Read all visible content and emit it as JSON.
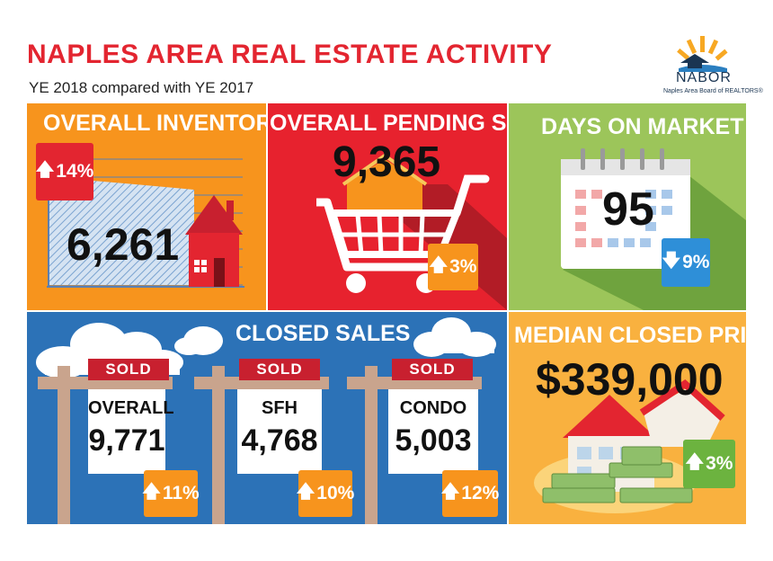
{
  "header": {
    "title": "NAPLES AREA REAL ESTATE ACTIVITY",
    "subtitle": "YE 2018 compared with YE 2017",
    "logo_text": "NABOR",
    "logo_subtext": "Naples Area Board of REALTORS®"
  },
  "inventory": {
    "title": "OVERALL INVENTORY",
    "value": "6,261",
    "change": "14%",
    "direction": "up",
    "badge_color": "#e32530"
  },
  "pending": {
    "title": "OVERALL PENDING SALES",
    "value": "9,365",
    "change": "3%",
    "direction": "up",
    "badge_color": "#f7941d"
  },
  "days": {
    "title": "DAYS ON MARKET",
    "value": "95",
    "change": "9%",
    "direction": "down",
    "badge_color": "#2e8fd8"
  },
  "closed": {
    "title": "CLOSED SALES",
    "sold_label": "SOLD",
    "signs": [
      {
        "label": "OVERALL",
        "value": "9,771",
        "change": "11%",
        "direction": "up"
      },
      {
        "label": "SFH",
        "value": "4,768",
        "change": "10%",
        "direction": "up"
      },
      {
        "label": "CONDO",
        "value": "5,003",
        "change": "12%",
        "direction": "up"
      }
    ],
    "badge_color": "#f7941d"
  },
  "median": {
    "title": "MEDIAN CLOSED PRICE",
    "value": "$339,000",
    "change": "3%",
    "direction": "up",
    "badge_color": "#6cb33f"
  },
  "arrows": {
    "up": "🡅",
    "down": "🡇"
  },
  "colors": {
    "red": "#e32530",
    "orange": "#f7941d",
    "green": "#9cc55a",
    "blue": "#2c72b7",
    "gold": "#f9b13f"
  }
}
